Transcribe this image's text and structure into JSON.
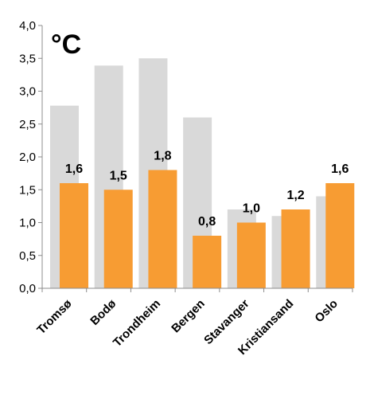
{
  "chart_data": {
    "type": "bar",
    "title": "",
    "unit_label": "°C",
    "xlabel": "",
    "ylabel": "",
    "ylim": [
      0,
      4
    ],
    "yticks": [
      "0,0",
      "0,5",
      "1,0",
      "1,5",
      "2,0",
      "2,5",
      "3,0",
      "3,5",
      "4,0"
    ],
    "ytick_values": [
      0,
      0.5,
      1.0,
      1.5,
      2.0,
      2.5,
      3.0,
      3.5,
      4.0
    ],
    "grid": false,
    "legend": "none",
    "categories": [
      "Tromsø",
      "Bodø",
      "Trondheim",
      "Bergen",
      "Stavanger",
      "Kristiansand",
      "Oslo"
    ],
    "series": [
      {
        "values": [
          2.78,
          3.39,
          3.5,
          2.6,
          1.2,
          1.1,
          1.4
        ],
        "color": "#d9d9d9"
      },
      {
        "values": [
          1.6,
          1.5,
          1.8,
          0.8,
          1.0,
          1.2,
          1.6
        ],
        "data_labels": [
          "1,6",
          "1,5",
          "1,8",
          "0,8",
          "1,0",
          "1,2",
          "1,6"
        ],
        "color": "#f79c33"
      }
    ],
    "axis_color": "#8c8c8c"
  }
}
